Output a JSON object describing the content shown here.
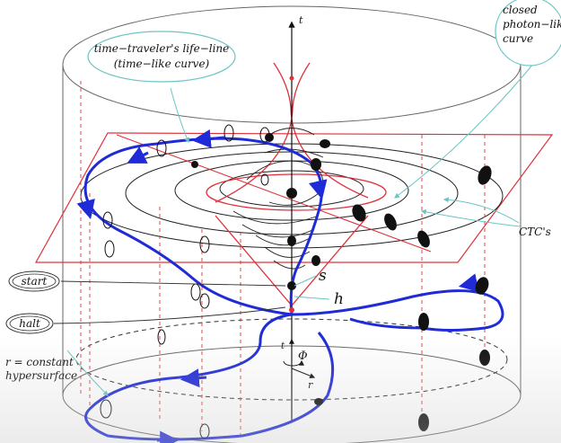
{
  "diagram": {
    "axis_labels": {
      "t_top": "t",
      "t_origin": "t",
      "phi": "Φ",
      "r": "r"
    },
    "point_labels": {
      "s": "s",
      "h": "h"
    },
    "callouts": {
      "lifeline_line1": "time−traveler's life−line",
      "lifeline_line2": "(time−like curve)",
      "photon_line1": "closed",
      "photon_line2": "photon−like",
      "photon_line3": "curve",
      "ctcs": "CTC's",
      "start": "start",
      "halt": "halt",
      "hyper_line1": "r = constant",
      "hyper_line2": "hypersurface"
    }
  },
  "colors": {
    "worldline": "#1f2bd6",
    "red": "#e0303a",
    "cyan": "#6cc4c4",
    "ink": "#111111",
    "gray": "#888888"
  }
}
